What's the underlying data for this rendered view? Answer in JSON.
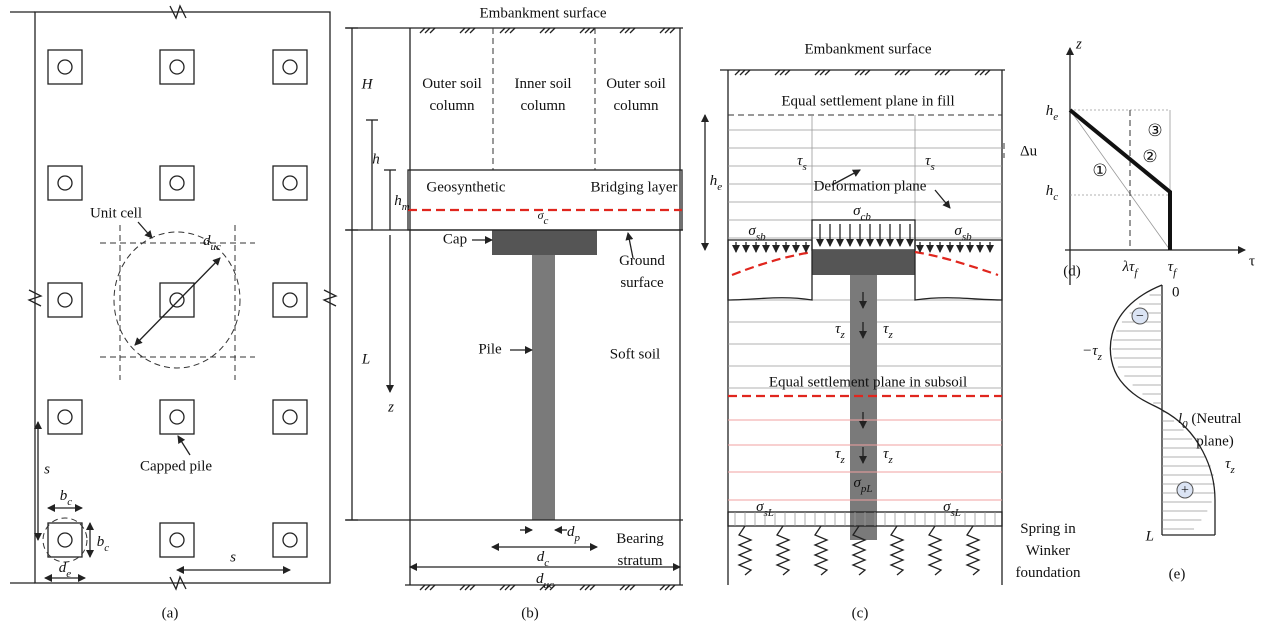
{
  "panel_a": {
    "caption": "(a)",
    "unit_cell": "Unit cell",
    "d_uc": {
      "base": "d",
      "sub": "uc"
    },
    "capped_pile": "Capped pile",
    "s_vertical": "s",
    "s_horizontal": "s",
    "b_c_top": {
      "base": "b",
      "sub": "c"
    },
    "b_c_side": {
      "base": "b",
      "sub": "c"
    },
    "d_e": {
      "base": "d",
      "sub": "e"
    }
  },
  "panel_b": {
    "caption": "(b)",
    "embankment_surface": "Embankment surface",
    "outer_left": [
      "Outer soil",
      "column"
    ],
    "inner": [
      "Inner soil",
      "column"
    ],
    "outer_right": [
      "Outer soil",
      "column"
    ],
    "H": "H",
    "h": "h",
    "h_m": {
      "base": "h",
      "sub": "m"
    },
    "geosynthetic": "Geosynthetic",
    "bridging_layer": "Bridging layer",
    "sigma_c": {
      "base": "σ",
      "sub": "c"
    },
    "cap": "Cap",
    "ground_surface": [
      "Ground",
      "surface"
    ],
    "L": "L",
    "pile": "Pile",
    "soft_soil": "Soft soil",
    "z": "z",
    "d_p": {
      "base": "d",
      "sub": "p"
    },
    "d_c": {
      "base": "d",
      "sub": "c"
    },
    "d_uc": {
      "base": "d",
      "sub": "uc"
    },
    "bearing_stratum": [
      "Bearing",
      "stratum"
    ]
  },
  "panel_c": {
    "caption": "(c)",
    "embankment_surface": "Embankment surface",
    "equal_plane_fill": "Equal settlement plane in fill",
    "delta_u": "Δu",
    "h_e": {
      "base": "h",
      "sub": "e"
    },
    "tau_s_left": {
      "base": "τ",
      "sub": "s"
    },
    "tau_s_right": {
      "base": "τ",
      "sub": "s"
    },
    "deformation_plane": "Deformation plane",
    "sigma_cb": {
      "base": "σ",
      "sub": "cb"
    },
    "sigma_sb_left": {
      "base": "σ",
      "sub": "sb"
    },
    "sigma_sb_right": {
      "base": "σ",
      "sub": "sb"
    },
    "tau_z_1": {
      "base": "τ",
      "sub": "z"
    },
    "tau_z_2": {
      "base": "τ",
      "sub": "z"
    },
    "equal_plane_subsoil": "Equal settlement plane in subsoil",
    "tau_z_3": {
      "base": "τ",
      "sub": "z"
    },
    "tau_z_4": {
      "base": "τ",
      "sub": "z"
    },
    "sigma_pL": {
      "base": "σ",
      "sub": "pL"
    },
    "sigma_sL_left": {
      "base": "σ",
      "sub": "sL"
    },
    "sigma_sL_right": {
      "base": "σ",
      "sub": "sL"
    },
    "spring": [
      "Spring in",
      "Winker",
      "foundation"
    ]
  },
  "panel_d": {
    "caption": "(d)",
    "z": "z",
    "h_e": {
      "base": "h",
      "sub": "e"
    },
    "h_c": {
      "base": "h",
      "sub": "c"
    },
    "zone_1": "①",
    "zone_2": "②",
    "zone_3": "③",
    "lambda_tau_f": {
      "base": "λτ",
      "sub": "f"
    },
    "tau_f": {
      "base": "τ",
      "sub": "f"
    },
    "tau": "τ"
  },
  "panel_e": {
    "caption": "(e)",
    "zero": "0",
    "minus_tau_z": {
      "base": "−τ",
      "sub": "z"
    },
    "neutral": {
      "base": "l",
      "sub": "0",
      "tail": " (Neutral"
    },
    "neutral_2": "plane)",
    "tau_z": {
      "base": "τ",
      "sub": "z"
    },
    "L": "L",
    "minus": "−",
    "plus": "+"
  }
}
